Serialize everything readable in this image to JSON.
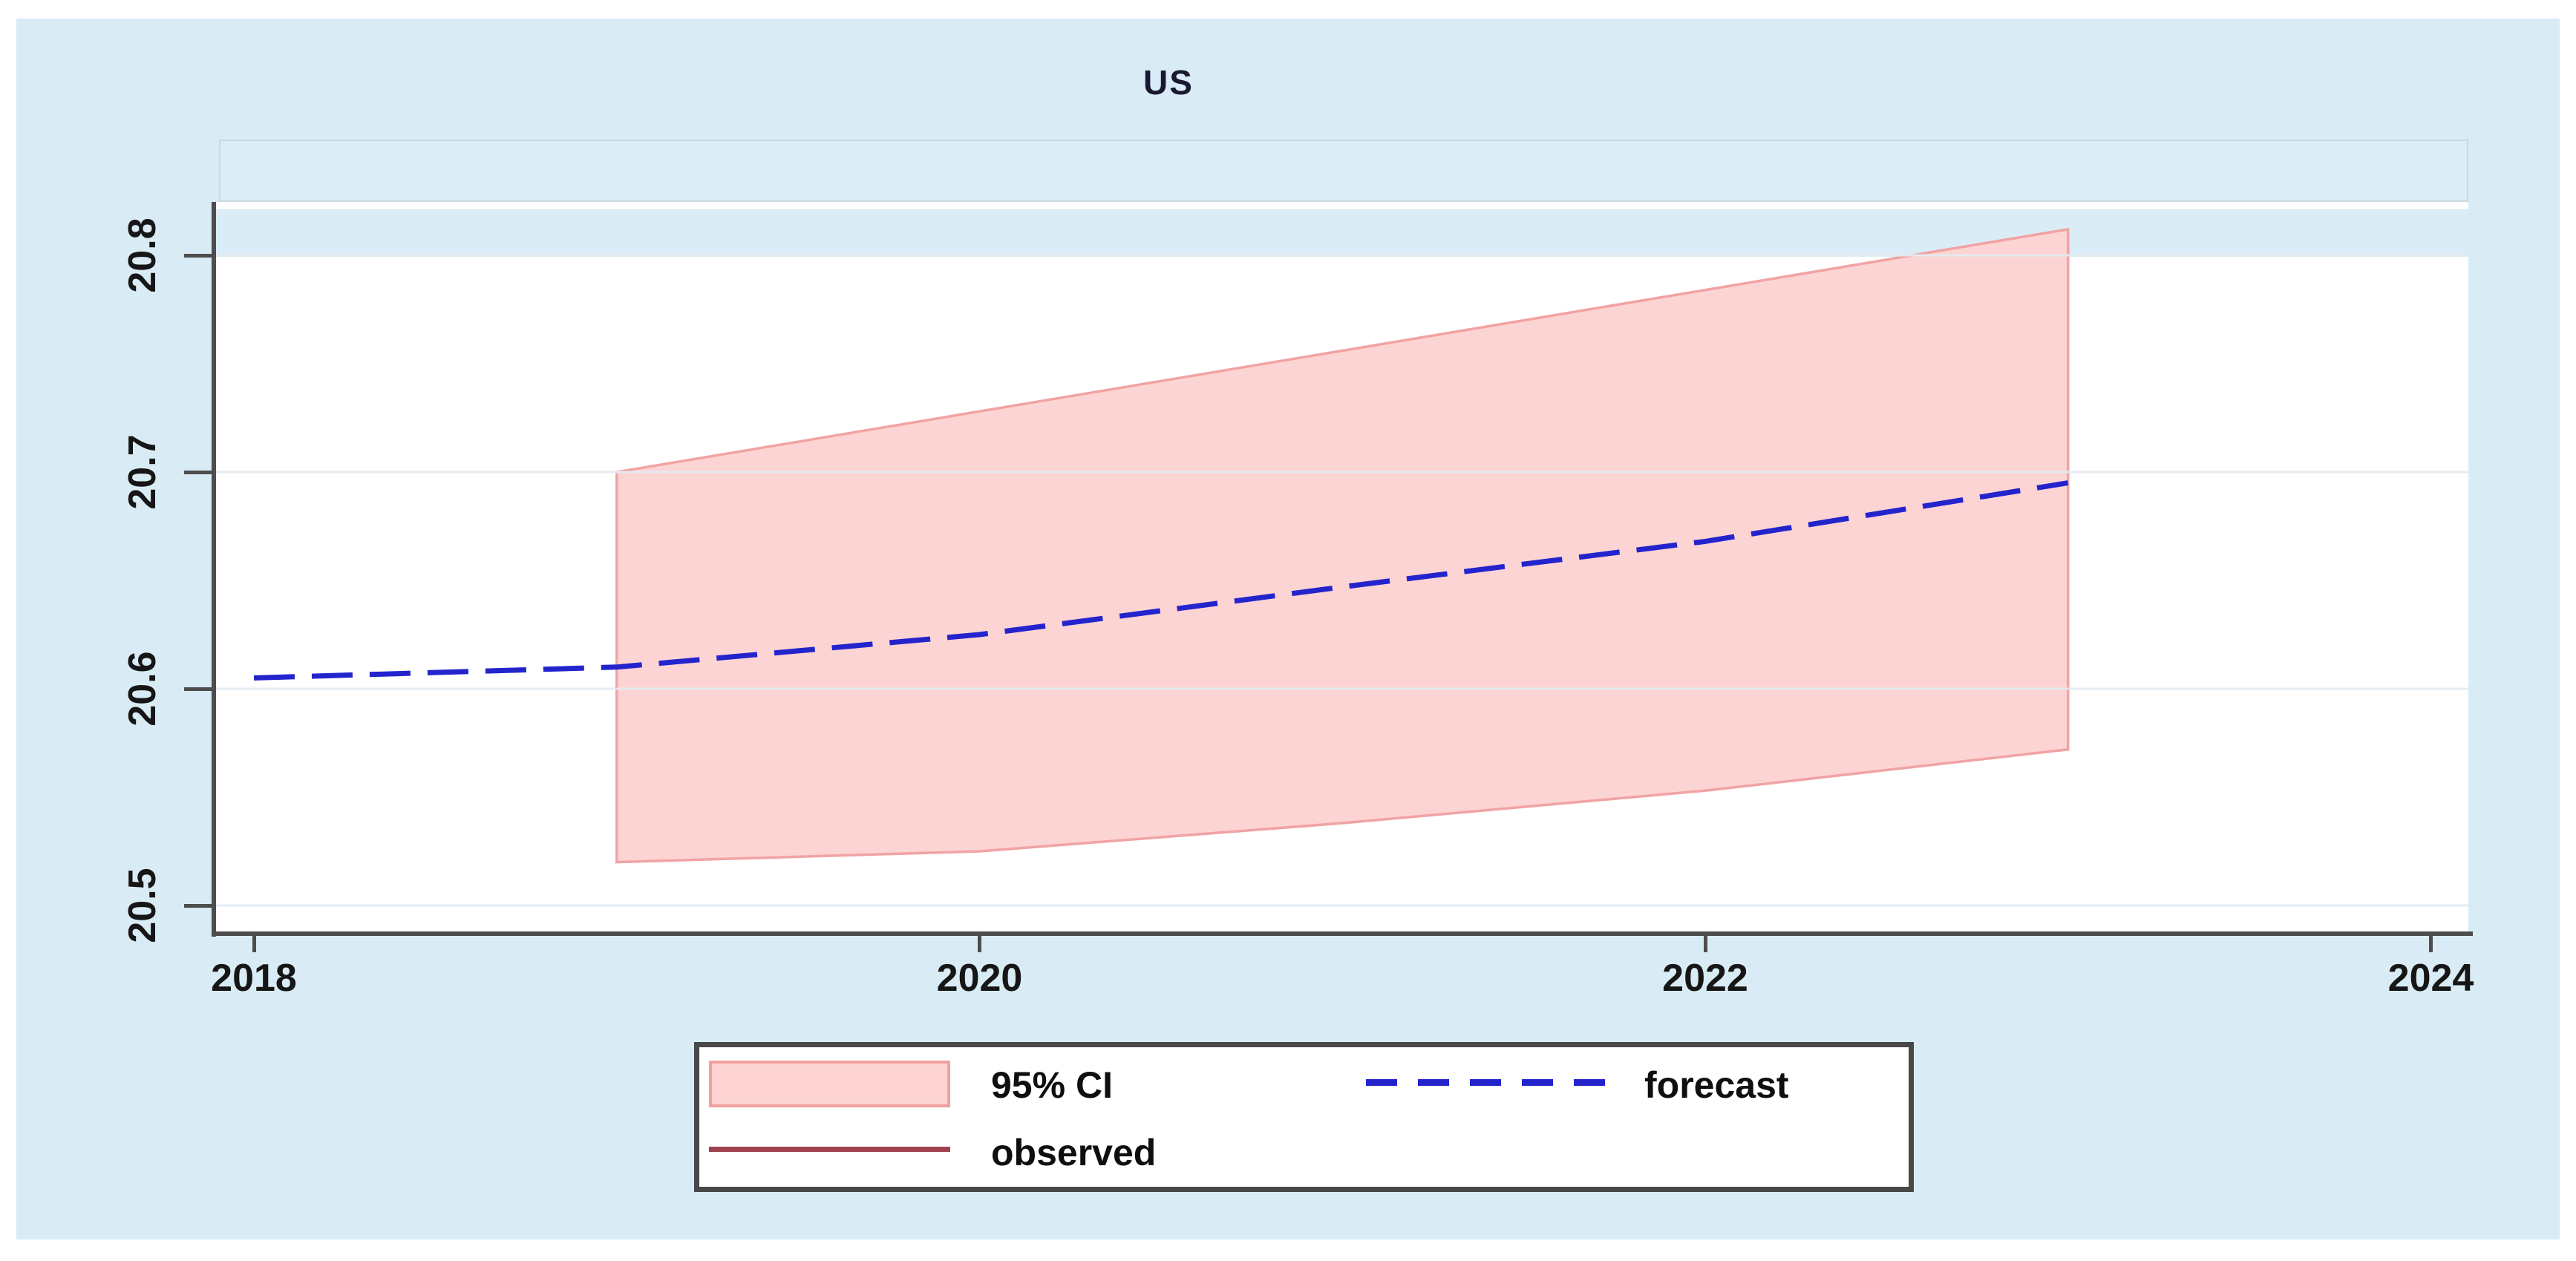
{
  "title": "US",
  "legend": {
    "ci": "95% CI",
    "forecast": "forecast",
    "observed": "observed"
  },
  "colors": {
    "outer_background": "#d9ecf5",
    "plot_background": "#ffffff",
    "axis": "#4d4d4d",
    "gridline": "#e4ebf0",
    "ci_fill": "#fdd4d4",
    "ci_edge": "#f1a3a3",
    "forecast_line": "#2424cd",
    "observed_line": "#a04252",
    "tick_label": "#161616"
  },
  "chart_data": {
    "type": "area",
    "title": "US",
    "xlabel": "",
    "ylabel": "",
    "xlim": [
      2017.89,
      2024.11
    ],
    "ylim": [
      20.487,
      20.825
    ],
    "x_ticks": [
      2018,
      2020,
      2022,
      2024
    ],
    "x_tick_labels": [
      "2018",
      "2020",
      "2022",
      "2024"
    ],
    "y_ticks": [
      20.8,
      20.7,
      20.6,
      20.5
    ],
    "y_tick_labels": [
      "20.8",
      "20.7",
      "20.6",
      "20.5"
    ],
    "grid": true,
    "legend_position": "bottom-center",
    "series": [
      {
        "name": "95% CI",
        "kind": "confidence-band",
        "x": [
          2019,
          2020,
          2021,
          2022,
          2023
        ],
        "upper": [
          20.7,
          20.728,
          20.756,
          20.784,
          20.812
        ],
        "lower": [
          20.52,
          20.525,
          20.538,
          20.553,
          20.572
        ]
      },
      {
        "name": "forecast",
        "kind": "dashed-line",
        "x": [
          2018,
          2019,
          2020,
          2021,
          2022,
          2023
        ],
        "y": [
          20.605,
          20.61,
          20.625,
          20.647,
          20.668,
          20.695
        ]
      },
      {
        "name": "observed",
        "kind": "line",
        "note": "appears in legend only; no observed segment visible inside plot area"
      }
    ]
  }
}
